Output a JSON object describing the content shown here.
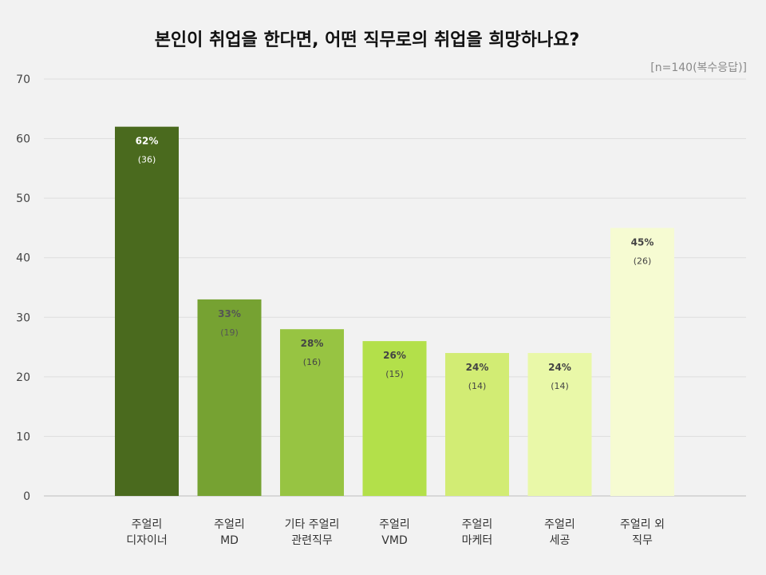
{
  "chart_data": {
    "type": "bar",
    "title": "본인이 취업을 한다면, 어떤 직무로의 취업을 희망하나요?",
    "note": "[n=140(복수응답)]",
    "xlabel": "",
    "ylabel": "",
    "ylim": [
      0,
      70
    ],
    "yticks": [
      0,
      10,
      20,
      30,
      40,
      50,
      60,
      70
    ],
    "grid": true,
    "categories": [
      [
        "주얼리",
        "디자이너"
      ],
      [
        "주얼리",
        "MD"
      ],
      [
        "기타 주얼리",
        "관련직무"
      ],
      [
        "주얼리",
        "VMD"
      ],
      [
        "주얼리",
        "마케터"
      ],
      [
        "주얼리",
        "세공"
      ],
      [
        "주얼리 외",
        "직무"
      ]
    ],
    "values": [
      62,
      33,
      28,
      26,
      24,
      24,
      45
    ],
    "value_labels": [
      "62%",
      "33%",
      "28%",
      "26%",
      "24%",
      "24%",
      "45%"
    ],
    "counts": [
      "(36)",
      "(19)",
      "(16)",
      "(15)",
      "(14)",
      "(14)",
      "(26)"
    ],
    "colors": [
      "#4a6a1e",
      "#76a232",
      "#97c442",
      "#b3e04a",
      "#d2ec74",
      "#e9f8a8",
      "#f6fbd2"
    ],
    "label_colors": [
      "#ffffff",
      "#555555",
      "#444444",
      "#444444",
      "#444444",
      "#444444",
      "#444444"
    ]
  }
}
